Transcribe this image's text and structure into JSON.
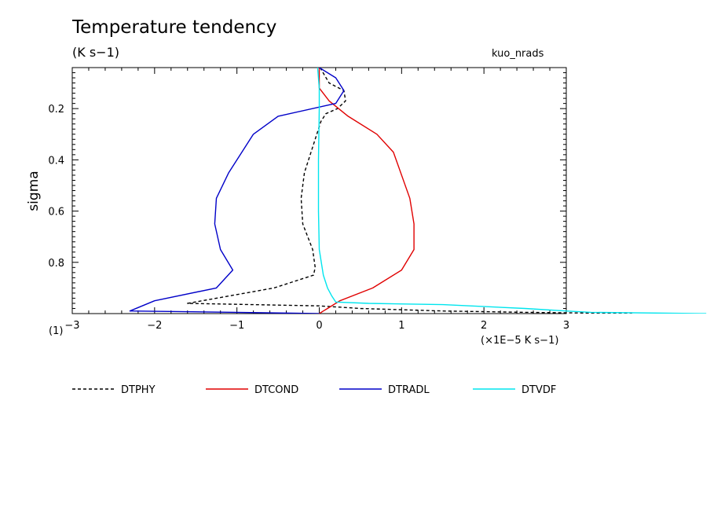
{
  "title": "Temperature tendency",
  "units": "(K s−1)",
  "run_label": "kuo_nrads",
  "scale_note": "(×1E−5 K s−1)",
  "page_number": "(1)",
  "chart_data": {
    "type": "line",
    "title": "Temperature tendency",
    "subtitle": "(K s−1)",
    "xlabel": "(×1E−5 K s−1)",
    "ylabel": "sigma",
    "xlim": [
      -3,
      3
    ],
    "ylim": [
      0.04,
      1.0
    ],
    "y_inverted": true,
    "x_ticks": [
      -3,
      -2,
      -1,
      0,
      1,
      2,
      3
    ],
    "x_tick_labels": [
      "−3",
      "−2",
      "−1",
      "0",
      "1",
      "2",
      "3"
    ],
    "y_ticks": [
      0.2,
      0.4,
      0.6,
      0.8
    ],
    "y_tick_labels": [
      "0.2",
      "0.4",
      "0.6",
      "0.8"
    ],
    "legend_position": "bottom",
    "series": [
      {
        "name": "DTPHY",
        "color": "#000000",
        "dash": true,
        "x": [
          0.01,
          0.12,
          0.3,
          0.32,
          0.22,
          0.08,
          0.02,
          -0.08,
          -0.18,
          -0.22,
          -0.2,
          -0.08,
          -0.05,
          -0.07,
          -0.55,
          -1.6,
          0.0,
          0.5,
          1.5,
          2.5,
          3.8
        ],
        "y": [
          0.04,
          0.1,
          0.13,
          0.17,
          0.2,
          0.22,
          0.25,
          0.35,
          0.45,
          0.55,
          0.65,
          0.75,
          0.82,
          0.85,
          0.9,
          0.96,
          0.97,
          0.98,
          0.99,
          0.995,
          1.0
        ]
      },
      {
        "name": "DTCOND",
        "color": "#e00000",
        "dash": false,
        "x": [
          0.0,
          0.0,
          0.12,
          0.35,
          0.7,
          0.9,
          1.1,
          1.15,
          1.15,
          1.0,
          0.65,
          0.25,
          0.1,
          0.05,
          0.0
        ],
        "y": [
          0.04,
          0.12,
          0.17,
          0.23,
          0.3,
          0.37,
          0.55,
          0.65,
          0.75,
          0.83,
          0.9,
          0.95,
          0.98,
          0.99,
          1.0
        ]
      },
      {
        "name": "DTRADL",
        "color": "#0000c8",
        "dash": false,
        "x": [
          0.0,
          0.2,
          0.3,
          0.2,
          -0.5,
          -0.8,
          -1.1,
          -1.25,
          -1.27,
          -1.2,
          -1.05,
          -1.25,
          -2.0,
          -2.3,
          -1.0,
          0.0
        ],
        "y": [
          0.04,
          0.08,
          0.13,
          0.18,
          0.23,
          0.3,
          0.45,
          0.55,
          0.65,
          0.75,
          0.83,
          0.9,
          0.95,
          0.99,
          0.995,
          1.0
        ]
      },
      {
        "name": "DTVDF",
        "color": "#00e5ee",
        "dash": false,
        "x": [
          -0.02,
          0.0,
          0.0,
          -0.01,
          -0.01,
          0.0,
          0.05,
          0.1,
          0.15,
          0.2,
          0.6,
          1.5,
          2.5,
          3.0,
          3.3,
          4.7
        ],
        "y": [
          0.04,
          0.12,
          0.2,
          0.4,
          0.6,
          0.75,
          0.85,
          0.9,
          0.93,
          0.955,
          0.96,
          0.965,
          0.98,
          0.99,
          0.995,
          1.0
        ]
      }
    ]
  }
}
